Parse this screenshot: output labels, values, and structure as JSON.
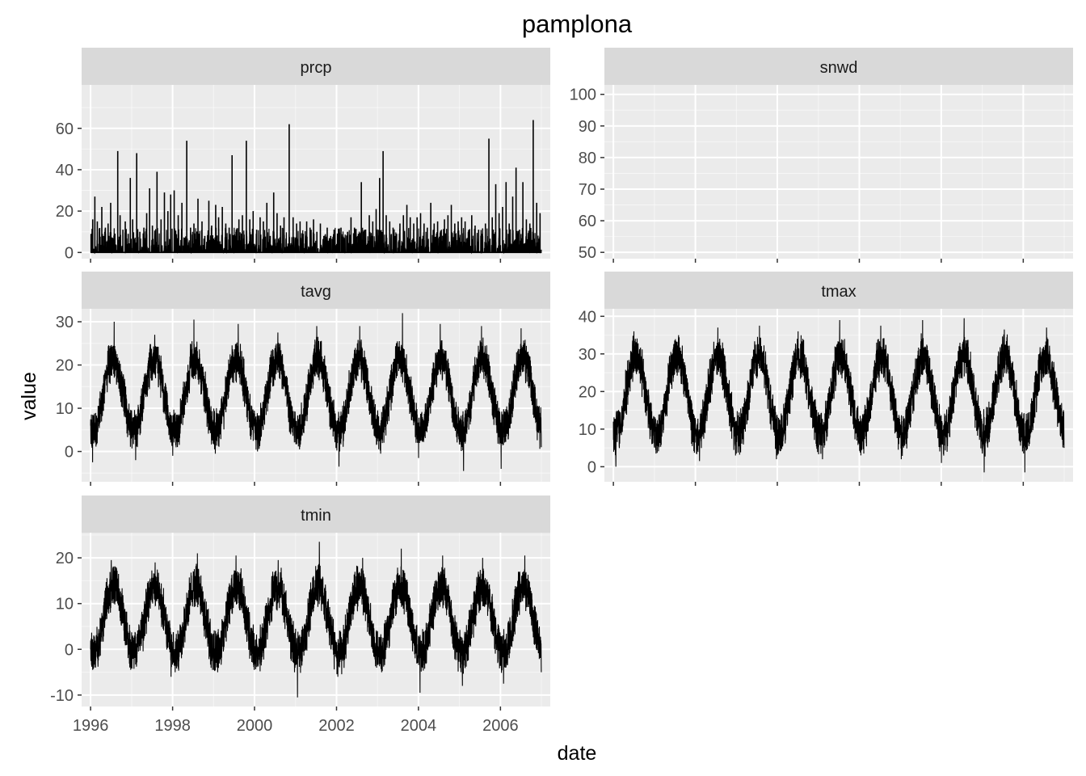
{
  "chart_data": {
    "type": "line",
    "title": "pamplona",
    "xlabel": "date",
    "ylabel": "value",
    "layout": "facet-wrap, 2 columns, free y scales",
    "grid": true,
    "colors": {
      "panel_bg": "#EBEBEB",
      "grid_major": "#FFFFFF",
      "strip_bg": "#D9D9D9",
      "line": "#000000",
      "tick_label": "#4D4D4D"
    },
    "x_range": [
      "1995-10-13",
      "2007-03-21"
    ],
    "x_ticks": [
      "1996",
      "1998",
      "2000",
      "2002",
      "2004",
      "2006"
    ],
    "data_range": [
      "1996-01-01",
      "2006-12-31"
    ],
    "sampling": "daily",
    "panels": [
      {
        "name": "prcp",
        "ylim": [
          -3,
          81
        ],
        "yticks": [
          0,
          20,
          40,
          60
        ],
        "baseline": 0,
        "spikes": [
          {
            "date": "1996-01-05",
            "value": 9
          },
          {
            "date": "1996-01-20",
            "value": 16
          },
          {
            "date": "1996-02-08",
            "value": 27
          },
          {
            "date": "1996-03-01",
            "value": 15
          },
          {
            "date": "1996-03-20",
            "value": 10
          },
          {
            "date": "1996-04-10",
            "value": 22
          },
          {
            "date": "1996-04-25",
            "value": 8
          },
          {
            "date": "1996-05-12",
            "value": 12
          },
          {
            "date": "1996-06-05",
            "value": 14
          },
          {
            "date": "1996-06-28",
            "value": 24
          },
          {
            "date": "1996-07-25",
            "value": 6
          },
          {
            "date": "1996-08-30",
            "value": 49
          },
          {
            "date": "1996-09-20",
            "value": 18
          },
          {
            "date": "1996-10-15",
            "value": 11
          },
          {
            "date": "1996-11-05",
            "value": 15
          },
          {
            "date": "1996-12-01",
            "value": 9
          },
          {
            "date": "1996-12-20",
            "value": 36
          },
          {
            "date": "1997-01-10",
            "value": 16
          },
          {
            "date": "1997-02-15",
            "value": 48
          },
          {
            "date": "1997-03-15",
            "value": 10
          },
          {
            "date": "1997-04-20",
            "value": 12
          },
          {
            "date": "1997-05-15",
            "value": 19
          },
          {
            "date": "1997-06-10",
            "value": 31
          },
          {
            "date": "1997-07-05",
            "value": 13
          },
          {
            "date": "1997-08-15",
            "value": 39
          },
          {
            "date": "1997-09-20",
            "value": 16
          },
          {
            "date": "1997-10-20",
            "value": 29
          },
          {
            "date": "1997-11-20",
            "value": 20
          },
          {
            "date": "1997-12-15",
            "value": 28
          },
          {
            "date": "1998-01-15",
            "value": 30
          },
          {
            "date": "1998-02-20",
            "value": 18
          },
          {
            "date": "1998-03-25",
            "value": 24
          },
          {
            "date": "1998-05-07",
            "value": 54
          },
          {
            "date": "1998-06-10",
            "value": 12
          },
          {
            "date": "1998-07-10",
            "value": 14
          },
          {
            "date": "1998-08-15",
            "value": 26
          },
          {
            "date": "1998-09-20",
            "value": 15
          },
          {
            "date": "1998-10-15",
            "value": 8
          },
          {
            "date": "1998-11-20",
            "value": 25
          },
          {
            "date": "1998-12-15",
            "value": 13
          },
          {
            "date": "1999-01-20",
            "value": 23
          },
          {
            "date": "1999-02-15",
            "value": 17
          },
          {
            "date": "1999-03-20",
            "value": 22
          },
          {
            "date": "1999-04-20",
            "value": 14
          },
          {
            "date": "1999-05-20",
            "value": 12
          },
          {
            "date": "1999-06-15",
            "value": 47
          },
          {
            "date": "1999-07-20",
            "value": 10
          },
          {
            "date": "1999-08-15",
            "value": 16
          },
          {
            "date": "1999-09-15",
            "value": 18
          },
          {
            "date": "1999-10-20",
            "value": 54
          },
          {
            "date": "1999-11-20",
            "value": 16
          },
          {
            "date": "1999-12-20",
            "value": 20
          },
          {
            "date": "2000-01-20",
            "value": 11
          },
          {
            "date": "2000-02-20",
            "value": 17
          },
          {
            "date": "2000-03-20",
            "value": 15
          },
          {
            "date": "2000-04-20",
            "value": 24
          },
          {
            "date": "2000-05-20",
            "value": 8
          },
          {
            "date": "2000-06-20",
            "value": 29
          },
          {
            "date": "2000-07-20",
            "value": 19
          },
          {
            "date": "2000-08-20",
            "value": 13
          },
          {
            "date": "2000-09-20",
            "value": 17
          },
          {
            "date": "2000-11-05",
            "value": 62
          },
          {
            "date": "2000-12-10",
            "value": 17
          },
          {
            "date": "2001-01-10",
            "value": 14
          },
          {
            "date": "2001-02-10",
            "value": 15
          },
          {
            "date": "2001-03-10",
            "value": 9
          },
          {
            "date": "2001-04-10",
            "value": 15
          },
          {
            "date": "2001-05-10",
            "value": 12
          },
          {
            "date": "2001-06-10",
            "value": 16
          },
          {
            "date": "2001-07-10",
            "value": 10
          },
          {
            "date": "2001-08-10",
            "value": 14
          },
          {
            "date": "2001-09-10",
            "value": 8
          },
          {
            "date": "2001-10-10",
            "value": 12
          },
          {
            "date": "2001-11-10",
            "value": 8
          },
          {
            "date": "2001-12-10",
            "value": 11
          },
          {
            "date": "2002-01-10",
            "value": 9
          },
          {
            "date": "2002-02-10",
            "value": 12
          },
          {
            "date": "2002-03-10",
            "value": 7
          },
          {
            "date": "2002-04-10",
            "value": 10
          },
          {
            "date": "2002-05-10",
            "value": 17
          },
          {
            "date": "2002-06-10",
            "value": 12
          },
          {
            "date": "2002-07-10",
            "value": 8
          },
          {
            "date": "2002-08-10",
            "value": 34
          },
          {
            "date": "2002-09-10",
            "value": 11
          },
          {
            "date": "2002-10-20",
            "value": 18
          },
          {
            "date": "2002-11-20",
            "value": 15
          },
          {
            "date": "2002-12-20",
            "value": 21
          },
          {
            "date": "2003-01-20",
            "value": 36
          },
          {
            "date": "2003-02-20",
            "value": 49
          },
          {
            "date": "2003-03-20",
            "value": 18
          },
          {
            "date": "2003-04-20",
            "value": 15
          },
          {
            "date": "2003-05-20",
            "value": 12
          },
          {
            "date": "2003-06-20",
            "value": 9
          },
          {
            "date": "2003-07-20",
            "value": 14
          },
          {
            "date": "2003-08-20",
            "value": 18
          },
          {
            "date": "2003-09-20",
            "value": 23
          },
          {
            "date": "2003-10-20",
            "value": 17
          },
          {
            "date": "2003-11-20",
            "value": 14
          },
          {
            "date": "2003-12-20",
            "value": 17
          },
          {
            "date": "2004-01-20",
            "value": 19
          },
          {
            "date": "2004-02-20",
            "value": 14
          },
          {
            "date": "2004-03-20",
            "value": 12
          },
          {
            "date": "2004-04-20",
            "value": 24
          },
          {
            "date": "2004-05-20",
            "value": 14
          },
          {
            "date": "2004-06-20",
            "value": 15
          },
          {
            "date": "2004-07-20",
            "value": 10
          },
          {
            "date": "2004-08-20",
            "value": 16
          },
          {
            "date": "2004-09-20",
            "value": 18
          },
          {
            "date": "2004-10-20",
            "value": 23
          },
          {
            "date": "2004-11-20",
            "value": 14
          },
          {
            "date": "2004-12-20",
            "value": 15
          },
          {
            "date": "2005-01-20",
            "value": 17
          },
          {
            "date": "2005-02-20",
            "value": 15
          },
          {
            "date": "2005-03-20",
            "value": 10
          },
          {
            "date": "2005-04-20",
            "value": 18
          },
          {
            "date": "2005-05-20",
            "value": 13
          },
          {
            "date": "2005-06-20",
            "value": 11
          },
          {
            "date": "2005-07-20",
            "value": 9
          },
          {
            "date": "2005-08-20",
            "value": 14
          },
          {
            "date": "2005-09-20",
            "value": 55
          },
          {
            "date": "2005-10-20",
            "value": 17
          },
          {
            "date": "2005-11-20",
            "value": 33
          },
          {
            "date": "2005-12-20",
            "value": 19
          },
          {
            "date": "2006-01-20",
            "value": 22
          },
          {
            "date": "2006-02-20",
            "value": 34
          },
          {
            "date": "2006-03-20",
            "value": 14
          },
          {
            "date": "2006-04-20",
            "value": 27
          },
          {
            "date": "2006-05-20",
            "value": 41
          },
          {
            "date": "2006-06-20",
            "value": 11
          },
          {
            "date": "2006-07-20",
            "value": 34
          },
          {
            "date": "2006-08-20",
            "value": 16
          },
          {
            "date": "2006-09-20",
            "value": 14
          },
          {
            "date": "2006-10-20",
            "value": 64
          },
          {
            "date": "2006-11-20",
            "value": 24
          },
          {
            "date": "2006-12-20",
            "value": 19
          }
        ]
      },
      {
        "name": "snwd",
        "ylim": [
          48,
          103
        ],
        "yticks": [
          50,
          60,
          70,
          80,
          90,
          100
        ],
        "values": []
      },
      {
        "name": "tavg",
        "ylim": [
          -7,
          33
        ],
        "yticks": [
          0,
          10,
          20,
          30
        ],
        "seasonal_model": {
          "mean": 13,
          "amplitude": 8.5,
          "peak_day_of_year": 200,
          "noise_amplitude": 3.8
        },
        "annual_max": [
          {
            "year": 1996,
            "value": 30
          },
          {
            "year": 1997,
            "value": 27
          },
          {
            "year": 1998,
            "value": 30.5
          },
          {
            "year": 1999,
            "value": 29.5
          },
          {
            "year": 2000,
            "value": 27.5
          },
          {
            "year": 2001,
            "value": 29
          },
          {
            "year": 2002,
            "value": 29
          },
          {
            "year": 2003,
            "value": 32
          },
          {
            "year": 2004,
            "value": 29.5
          },
          {
            "year": 2005,
            "value": 29
          },
          {
            "year": 2006,
            "value": 28.5
          }
        ],
        "annual_min": [
          {
            "year": 1996,
            "value": -2.5
          },
          {
            "year": 1997,
            "value": -2
          },
          {
            "year": 1998,
            "value": -1
          },
          {
            "year": 1999,
            "value": -0.5
          },
          {
            "year": 2000,
            "value": 0
          },
          {
            "year": 2001,
            "value": 0.5
          },
          {
            "year": 2002,
            "value": -3.5
          },
          {
            "year": 2003,
            "value": -0.5
          },
          {
            "year": 2004,
            "value": -1.5
          },
          {
            "year": 2005,
            "value": -4.5
          },
          {
            "year": 2006,
            "value": -4
          }
        ],
        "start_value": 6,
        "end_value": 1
      },
      {
        "name": "tmax",
        "ylim": [
          -4,
          42
        ],
        "yticks": [
          0,
          10,
          20,
          30,
          40
        ],
        "seasonal_model": {
          "mean": 19,
          "amplitude": 10.5,
          "peak_day_of_year": 200,
          "noise_amplitude": 4.6
        },
        "annual_max": [
          {
            "year": 1996,
            "value": 36
          },
          {
            "year": 1997,
            "value": 35
          },
          {
            "year": 1998,
            "value": 37
          },
          {
            "year": 1999,
            "value": 37.5
          },
          {
            "year": 2000,
            "value": 36
          },
          {
            "year": 2001,
            "value": 39
          },
          {
            "year": 2002,
            "value": 37.5
          },
          {
            "year": 2003,
            "value": 39
          },
          {
            "year": 2004,
            "value": 39.5
          },
          {
            "year": 2005,
            "value": 36.5
          },
          {
            "year": 2006,
            "value": 37
          }
        ],
        "annual_min": [
          {
            "year": 1996,
            "value": 0
          },
          {
            "year": 1997,
            "value": 3.5
          },
          {
            "year": 1998,
            "value": 1.5
          },
          {
            "year": 1999,
            "value": 2
          },
          {
            "year": 2000,
            "value": 3
          },
          {
            "year": 2001,
            "value": 2
          },
          {
            "year": 2002,
            "value": 3
          },
          {
            "year": 2003,
            "value": 2
          },
          {
            "year": 2004,
            "value": 1
          },
          {
            "year": 2005,
            "value": -1.5
          },
          {
            "year": 2006,
            "value": -1.5
          }
        ],
        "start_value": 12,
        "end_value": 5
      },
      {
        "name": "tmin",
        "ylim": [
          -12.5,
          25.5
        ],
        "yticks": [
          -10,
          0,
          10,
          20
        ],
        "seasonal_model": {
          "mean": 6.5,
          "amplitude": 7.5,
          "peak_day_of_year": 205,
          "noise_amplitude": 3.8
        },
        "annual_max": [
          {
            "year": 1996,
            "value": 19.5
          },
          {
            "year": 1997,
            "value": 19
          },
          {
            "year": 1998,
            "value": 21
          },
          {
            "year": 1999,
            "value": 20.5
          },
          {
            "year": 2000,
            "value": 19.5
          },
          {
            "year": 2001,
            "value": 23.5
          },
          {
            "year": 2002,
            "value": 20
          },
          {
            "year": 2003,
            "value": 22
          },
          {
            "year": 2004,
            "value": 20.5
          },
          {
            "year": 2005,
            "value": 20
          },
          {
            "year": 2006,
            "value": 20.5
          }
        ],
        "annual_min": [
          {
            "year": 1996,
            "value": -4.5
          },
          {
            "year": 1997,
            "value": -6
          },
          {
            "year": 1998,
            "value": -5
          },
          {
            "year": 1999,
            "value": -5
          },
          {
            "year": 2000,
            "value": -5
          },
          {
            "year": 2001,
            "value": -10.5
          },
          {
            "year": 2002,
            "value": -6
          },
          {
            "year": 2003,
            "value": -5
          },
          {
            "year": 2004,
            "value": -9.5
          },
          {
            "year": 2005,
            "value": -8
          },
          {
            "year": 2006,
            "value": -7.5
          }
        ],
        "start_value": 0,
        "end_value": -5
      }
    ]
  }
}
